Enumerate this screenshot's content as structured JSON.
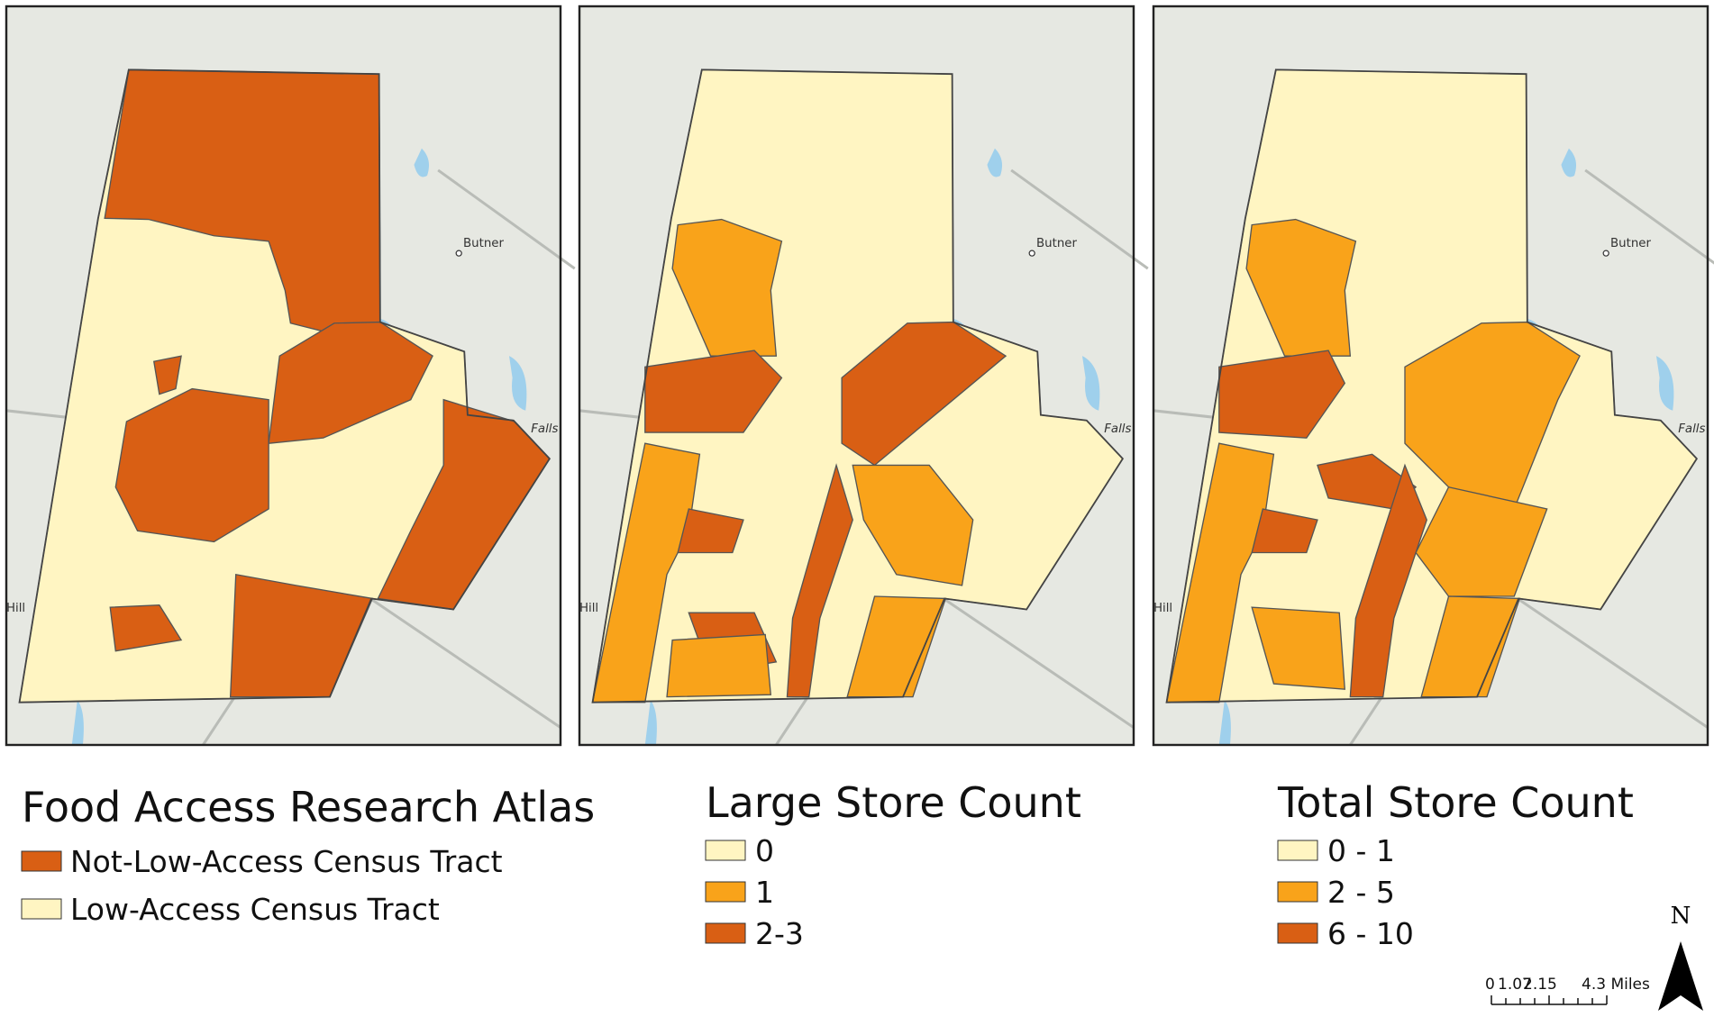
{
  "panels": [
    {
      "places": [
        "Butner",
        "Hill",
        "Falls"
      ]
    },
    {
      "places": [
        "Butner",
        "Hill",
        "Falls"
      ]
    },
    {
      "places": [
        "Butner",
        "Hill",
        "Falls"
      ]
    }
  ],
  "legends": [
    {
      "title": "Food Access Research Atlas",
      "items": [
        "Not-Low-Access Census Tract",
        "Low-Access Census Tract"
      ]
    },
    {
      "title": "Large Store Count",
      "items": [
        "0",
        "1",
        "2-3"
      ]
    },
    {
      "title": "Total Store Count",
      "items": [
        "0 - 1",
        "2 - 5",
        "6 - 10"
      ]
    }
  ],
  "scale_bar": {
    "labels": [
      "0",
      "1.07",
      "2.15",
      "4.3 Miles"
    ]
  },
  "north": "N"
}
